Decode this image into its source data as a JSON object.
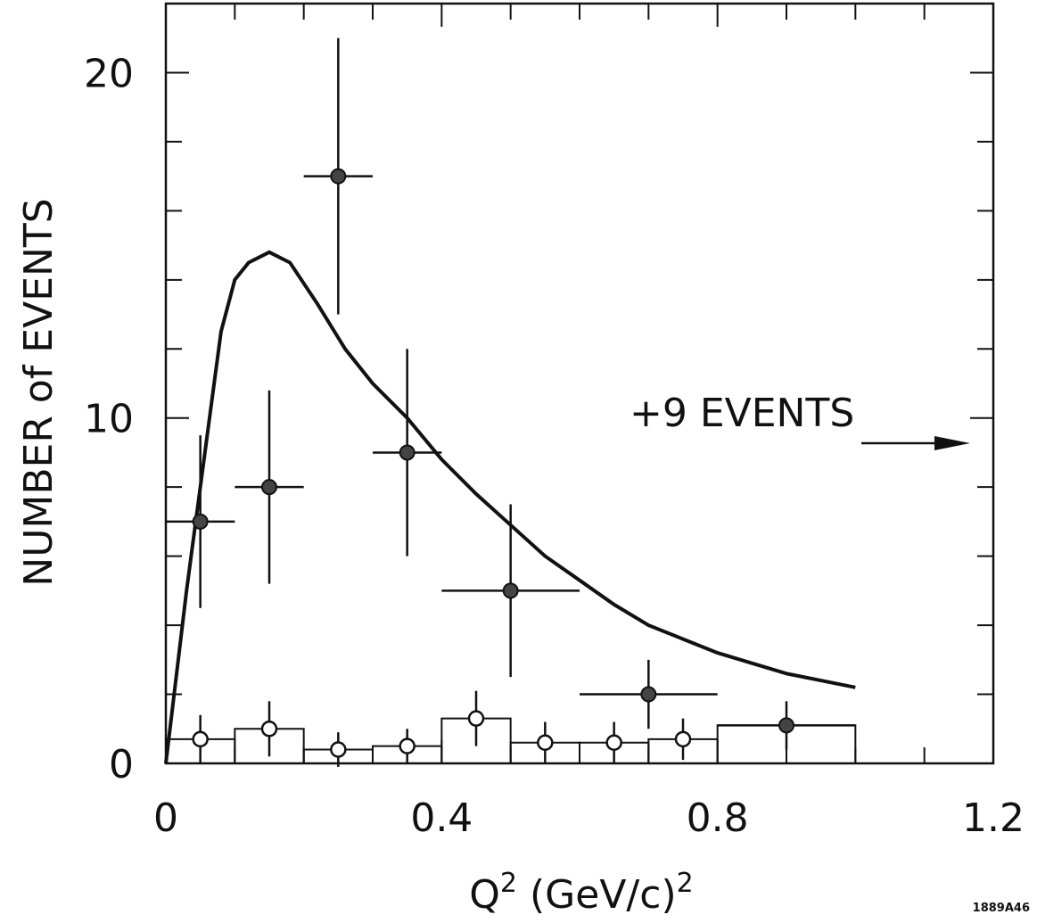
{
  "chart_data": {
    "type": "scatter",
    "title": "",
    "xlabel_main": "Q",
    "xlabel_sup": "2",
    "xlabel_units": "(GeV/c)",
    "xlabel_units_sup": "2",
    "ylabel": "NUMBER of EVENTS",
    "xlim": [
      0,
      1.2
    ],
    "ylim": [
      0,
      22
    ],
    "x_ticks": [
      {
        "value": 0,
        "label": "0"
      },
      {
        "value": 0.4,
        "label": "0.4"
      },
      {
        "value": 0.8,
        "label": "0.8"
      },
      {
        "value": 1.2,
        "label": "1.2"
      }
    ],
    "y_ticks": [
      {
        "value": 0,
        "label": "0"
      },
      {
        "value": 10,
        "label": "10"
      },
      {
        "value": 20,
        "label": "20"
      }
    ],
    "x_minor_step": 0.1,
    "y_minor_step": 2,
    "grid": false,
    "series": [
      {
        "marker": "filled-circle",
        "points": [
          {
            "x": 0.05,
            "y": 7.0,
            "xerr": 0.05,
            "yerr": 2.5
          },
          {
            "x": 0.15,
            "y": 8.0,
            "xerr": 0.05,
            "yerr": 2.8
          },
          {
            "x": 0.25,
            "y": 17.0,
            "xerr": 0.05,
            "yerr": 4.0
          },
          {
            "x": 0.35,
            "y": 9.0,
            "xerr": 0.05,
            "yerr": 3.0
          },
          {
            "x": 0.5,
            "y": 5.0,
            "xerr": 0.1,
            "yerr": 2.5
          },
          {
            "x": 0.7,
            "y": 2.0,
            "xerr": 0.1,
            "yerr": 1.0
          },
          {
            "x": 0.9,
            "y": 1.1,
            "xerr": 0.1,
            "yerr": 0.7
          }
        ]
      },
      {
        "marker": "open-circle",
        "points": [
          {
            "x": 0.05,
            "y": 0.7,
            "yerr": 0.7
          },
          {
            "x": 0.15,
            "y": 1.0,
            "yerr": 0.8
          },
          {
            "x": 0.25,
            "y": 0.4,
            "yerr": 0.5
          },
          {
            "x": 0.35,
            "y": 0.5,
            "yerr": 0.5
          },
          {
            "x": 0.45,
            "y": 1.3,
            "yerr": 0.8
          },
          {
            "x": 0.55,
            "y": 0.6,
            "yerr": 0.6
          },
          {
            "x": 0.65,
            "y": 0.6,
            "yerr": 0.6
          },
          {
            "x": 0.75,
            "y": 0.7,
            "yerr": 0.6
          }
        ]
      },
      {
        "marker": "histogram",
        "bins": [
          {
            "x0": 0.0,
            "x1": 0.1,
            "y": 0.7
          },
          {
            "x0": 0.1,
            "x1": 0.2,
            "y": 1.0
          },
          {
            "x0": 0.2,
            "x1": 0.3,
            "y": 0.4
          },
          {
            "x0": 0.3,
            "x1": 0.4,
            "y": 0.5
          },
          {
            "x0": 0.4,
            "x1": 0.5,
            "y": 1.3
          },
          {
            "x0": 0.5,
            "x1": 0.6,
            "y": 0.6
          },
          {
            "x0": 0.6,
            "x1": 0.7,
            "y": 0.6
          },
          {
            "x0": 0.7,
            "x1": 0.8,
            "y": 0.7
          },
          {
            "x0": 0.8,
            "x1": 1.0,
            "y": 1.1
          }
        ]
      },
      {
        "marker": "curve",
        "points": [
          [
            0.0,
            0.0
          ],
          [
            0.03,
            5.0
          ],
          [
            0.06,
            9.5
          ],
          [
            0.08,
            12.5
          ],
          [
            0.1,
            14.0
          ],
          [
            0.12,
            14.5
          ],
          [
            0.15,
            14.8
          ],
          [
            0.18,
            14.5
          ],
          [
            0.22,
            13.3
          ],
          [
            0.26,
            12.0
          ],
          [
            0.3,
            11.0
          ],
          [
            0.35,
            10.0
          ],
          [
            0.4,
            8.8
          ],
          [
            0.45,
            7.8
          ],
          [
            0.5,
            6.9
          ],
          [
            0.55,
            6.0
          ],
          [
            0.6,
            5.3
          ],
          [
            0.65,
            4.6
          ],
          [
            0.7,
            4.0
          ],
          [
            0.75,
            3.6
          ],
          [
            0.8,
            3.2
          ],
          [
            0.85,
            2.9
          ],
          [
            0.9,
            2.6
          ],
          [
            0.95,
            2.4
          ],
          [
            1.0,
            2.2
          ]
        ]
      }
    ],
    "annotations": [
      {
        "text": "+9 EVENTS",
        "arrow": "right"
      }
    ],
    "figure_code": "1889A46"
  }
}
